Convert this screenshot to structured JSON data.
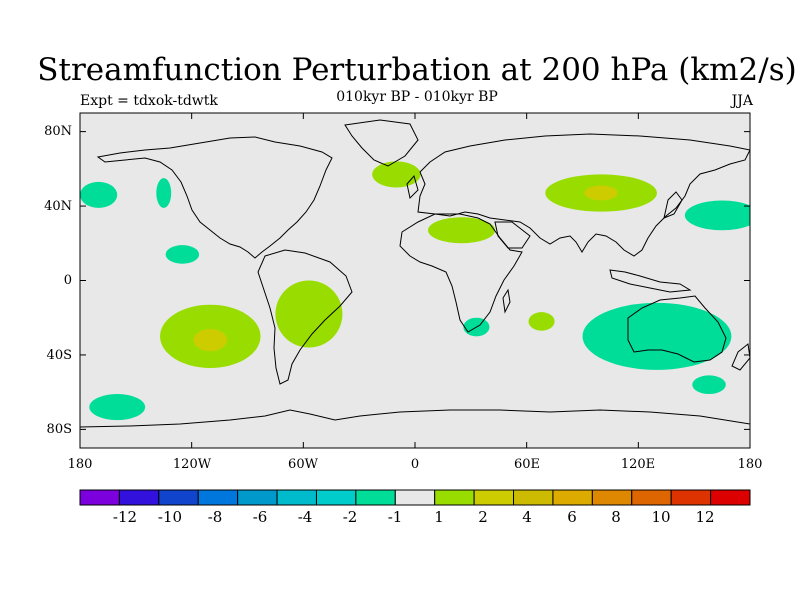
{
  "title": "Streamfunction Perturbation at 200 hPa (km2/s)",
  "subtitle": "010kyr BP - 010kyr BP",
  "left_label": "Expt = tdxok-tdwtk",
  "right_label": "JJA",
  "colors": {
    "background": "#e8e8e8",
    "pos_1_2": "#99dd00",
    "pos_2_4": "#cccc00",
    "neg_1_2": "#00dd99",
    "neg_2_4": "#00cccc"
  },
  "map": {
    "lat_ticks": [
      "80N",
      "40N",
      "0",
      "40S",
      "80S"
    ],
    "lon_ticks": [
      "180",
      "120W",
      "60W",
      "0",
      "60E",
      "120E",
      "180"
    ]
  },
  "colorbar": {
    "labels": [
      "-12",
      "-10",
      "-8",
      "-6",
      "-4",
      "-2",
      "-1",
      "1",
      "2",
      "4",
      "6",
      "8",
      "10",
      "12"
    ],
    "colors": [
      "#7b00dd",
      "#3311dd",
      "#1144cc",
      "#0077dd",
      "#0099cc",
      "#00bbcc",
      "#00cccc",
      "#00dd99",
      "#e8e8e8",
      "#99dd00",
      "#cccc00",
      "#ccbb00",
      "#ddaa00",
      "#dd8800",
      "#dd6600",
      "#dd3300",
      "#dd0000"
    ]
  },
  "chart_data": {
    "type": "heatmap",
    "title": "Streamfunction Perturbation at 200 hPa (km2/s)",
    "subtitle": "010kyr BP - 010kyr BP",
    "season": "JJA",
    "experiment": "Expt = tdxok-tdwtk",
    "xlim": [
      -180,
      180
    ],
    "ylim": [
      -90,
      90
    ],
    "levels": [
      -12,
      -10,
      -8,
      -6,
      -4,
      -2,
      -1,
      1,
      2,
      4,
      6,
      8,
      10,
      12
    ],
    "blobs": [
      {
        "lon": -110,
        "lat": -30,
        "rlon": 27,
        "rlat": 17,
        "level": 1
      },
      {
        "lon": -110,
        "lat": -32,
        "rlon": 9,
        "rlat": 6,
        "level": 2
      },
      {
        "lon": -57,
        "lat": -18,
        "rlon": 18,
        "rlat": 18,
        "level": 1
      },
      {
        "lon": -10,
        "lat": 57,
        "rlon": 13,
        "rlat": 7,
        "level": 1
      },
      {
        "lon": 25,
        "lat": 27,
        "rlon": 18,
        "rlat": 7,
        "level": 1
      },
      {
        "lon": 100,
        "lat": 47,
        "rlon": 30,
        "rlat": 10,
        "level": 1
      },
      {
        "lon": 100,
        "lat": 47,
        "rlon": 9,
        "rlat": 4,
        "level": 2
      },
      {
        "lon": 68,
        "lat": -22,
        "rlon": 7,
        "rlat": 5,
        "level": 1
      },
      {
        "lon": -170,
        "lat": 46,
        "rlon": 10,
        "rlat": 7,
        "level": -1
      },
      {
        "lon": -135,
        "lat": 47,
        "rlon": 4,
        "rlat": 8,
        "level": -1
      },
      {
        "lon": -125,
        "lat": 14,
        "rlon": 9,
        "rlat": 5,
        "level": -1
      },
      {
        "lon": -160,
        "lat": -68,
        "rlon": 15,
        "rlat": 7,
        "level": -1
      },
      {
        "lon": 33,
        "lat": -25,
        "rlon": 7,
        "rlat": 5,
        "level": -1
      },
      {
        "lon": 130,
        "lat": -30,
        "rlon": 40,
        "rlat": 18,
        "level": -1
      },
      {
        "lon": 158,
        "lat": -56,
        "rlon": 9,
        "rlat": 5,
        "level": -1
      },
      {
        "lon": 165,
        "lat": 35,
        "rlon": 20,
        "rlat": 8,
        "level": -1
      }
    ]
  }
}
